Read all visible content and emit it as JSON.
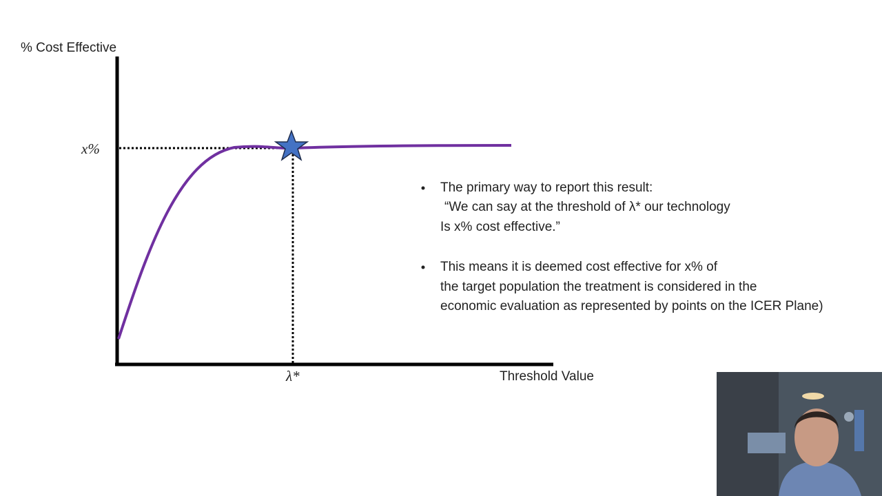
{
  "diagram": {
    "y_axis_label": "% Cost Effective",
    "y_marker_label": "x%",
    "x_marker_label": "λ*",
    "x_axis_label": "Threshold Value",
    "bullets": [
      {
        "lines": [
          "The primary way to report this result:",
          "“We can say at the threshold of λ* our technology",
          "Is x% cost effective.”"
        ]
      },
      {
        "lines": [
          "This means it is deemed cost effective for x% of",
          "the target population the treatment is considered in the",
          "economic evaluation as represented by points on the ICER Plane)"
        ]
      }
    ]
  }
}
